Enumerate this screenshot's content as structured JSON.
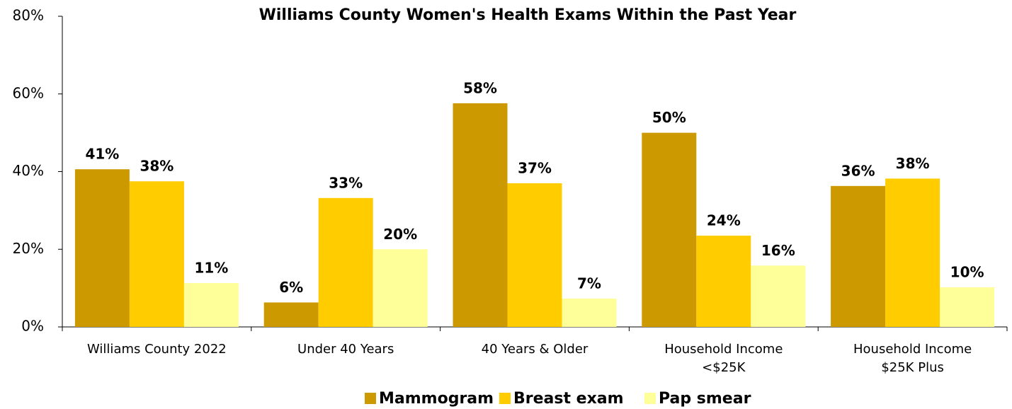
{
  "chart_data": {
    "type": "bar",
    "title": "Williams County Women's Health Exams Within the Past Year",
    "categories": [
      "Williams County 2022",
      "Under 40 Years",
      "40 Years & Older",
      "Household Income\n<$25K",
      "Household Income\n$25K Plus"
    ],
    "series": [
      {
        "name": "Mammogram",
        "color": "#cc9900",
        "values": [
          40.6,
          6.3,
          57.6,
          50.0,
          36.3
        ],
        "value_labels": [
          "41%",
          "6%",
          "58%",
          "50%",
          "36%"
        ]
      },
      {
        "name": "Breast exam",
        "color": "#ffcc00",
        "values": [
          37.5,
          33.2,
          37.0,
          23.5,
          38.2
        ],
        "value_labels": [
          "38%",
          "33%",
          "37%",
          "24%",
          "38%"
        ]
      },
      {
        "name": "Pap smear",
        "color": "#ffff99",
        "values": [
          11.3,
          20.0,
          7.3,
          15.8,
          10.2
        ],
        "value_labels": [
          "11%",
          "20%",
          "7%",
          "16%",
          "10%"
        ]
      }
    ],
    "ylim": [
      0,
      80
    ],
    "yticks": [
      {
        "value": 0,
        "label": "0%"
      },
      {
        "value": 20,
        "label": "20%"
      },
      {
        "value": 40,
        "label": "40%"
      },
      {
        "value": 60,
        "label": "60%"
      },
      {
        "value": 80,
        "label": "80%"
      }
    ],
    "legend": "bottom"
  }
}
